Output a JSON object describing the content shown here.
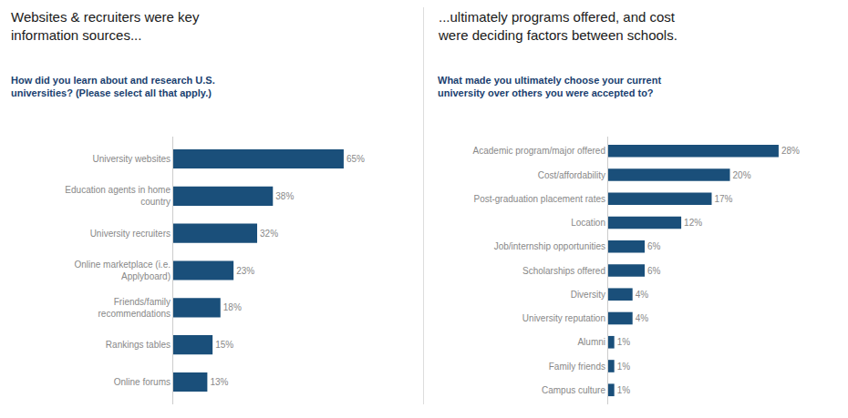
{
  "chart_data": [
    {
      "type": "bar",
      "orientation": "horizontal",
      "title": "Websites & recruiters were key\ninformation sources...",
      "subtitle": "How did you learn about and research U.S.\nuniversities? (Please select all that apply.)",
      "categories": [
        "University websites",
        "Education agents in home\ncountry",
        "University recruiters",
        "Online marketplace (i.e.\nApplyboard)",
        "Friends/family\nrecommendations",
        "Rankings tables",
        "Online forums"
      ],
      "values": [
        65,
        38,
        32,
        23,
        18,
        15,
        13
      ],
      "value_labels": [
        "65%",
        "38%",
        "32%",
        "23%",
        "18%",
        "15%",
        "13%"
      ],
      "data_labels": true,
      "color": "#1a4f7a",
      "xlim": [
        0,
        84.5
      ],
      "grid": false,
      "tick_labels": "y"
    },
    {
      "type": "bar",
      "orientation": "horizontal",
      "title": "...ultimately programs offered, and cost\nwere deciding factors between schools.",
      "subtitle": "What made you ultimately choose your current\nuniversity over others you were accepted to?",
      "categories": [
        "Academic program/major offered",
        "Cost/affordability",
        "Post-graduation placement rates",
        "Location",
        "Job/internship opportunities",
        "Scholarships offered",
        "Diversity",
        "University reputation",
        "Alumni",
        "Family friends",
        "Campus culture"
      ],
      "values": [
        28,
        20,
        17,
        12,
        6,
        6,
        4,
        4,
        1,
        1,
        1
      ],
      "value_labels": [
        "28%",
        "20%",
        "17%",
        "12%",
        "6%",
        "6%",
        "4%",
        "4%",
        "1%",
        "1%",
        "1%"
      ],
      "data_labels": true,
      "color": "#1a4f7a",
      "xlim": [
        0,
        36.4
      ],
      "grid": false,
      "tick_labels": "y"
    }
  ]
}
